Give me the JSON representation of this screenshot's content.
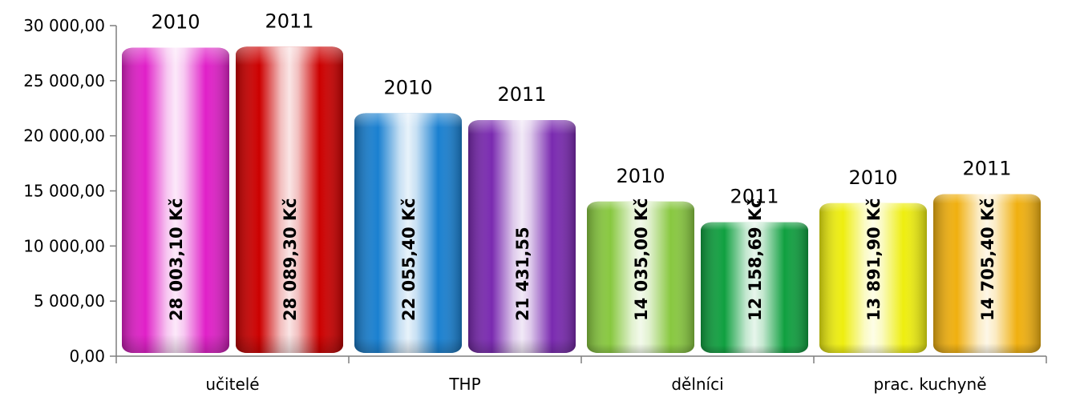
{
  "chart_data": {
    "type": "bar",
    "categories": [
      "učitelé",
      "THP",
      "dělníci",
      "prac. kuchyně"
    ],
    "series_labels": [
      "2010",
      "2011"
    ],
    "values": [
      [
        28003.1,
        28089.3
      ],
      [
        22055.4,
        21431.55
      ],
      [
        14035.0,
        12158.69
      ],
      [
        13891.9,
        14705.4
      ]
    ],
    "data_labels": [
      [
        "28 003,10 Kč",
        "28 089,30 Kč"
      ],
      [
        "22 055,40 Kč",
        "21 431,55"
      ],
      [
        "14 035,00 Kč",
        "12 158,69 Kč"
      ],
      [
        "13 891,90 Kč",
        "14 705,40 Kč"
      ]
    ],
    "bar_colors": [
      [
        "#e020c8",
        "#cc0000"
      ],
      [
        "#1a80d0",
        "#7a2ab0"
      ],
      [
        "#88c840",
        "#10a040"
      ],
      [
        "#eeee10",
        "#f0b010"
      ]
    ],
    "ylim": [
      0,
      30000
    ],
    "yticks": [
      "0,00",
      "5 000,00",
      "10 000,00",
      "15 000,00",
      "20 000,00",
      "25 000,00",
      "30 000,00"
    ],
    "ytick_values": [
      0,
      5000,
      10000,
      15000,
      20000,
      25000,
      30000
    ],
    "grid": false,
    "legend": "none"
  }
}
